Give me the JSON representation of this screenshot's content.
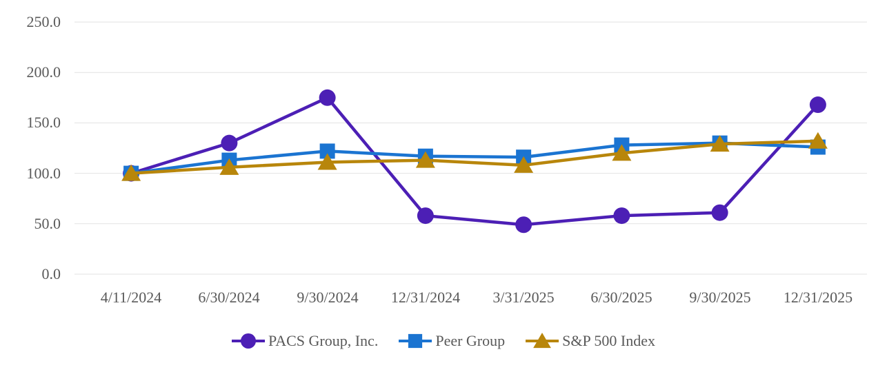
{
  "chart_data": {
    "type": "line",
    "title": "",
    "categories": [
      "4/11/2024",
      "6/30/2024",
      "9/30/2024",
      "12/31/2024",
      "3/31/2025",
      "6/30/2025",
      "9/30/2025",
      "12/31/2025"
    ],
    "series": [
      {
        "name": "PACS Group, Inc.",
        "marker": "circle",
        "color": "#4C1FB5",
        "values": [
          100,
          130,
          175,
          58,
          49,
          58,
          61,
          168
        ]
      },
      {
        "name": "Peer Group",
        "marker": "square",
        "color": "#1B74D1",
        "values": [
          100,
          113,
          122,
          117,
          116,
          128,
          130,
          126
        ]
      },
      {
        "name": "S&P 500 Index",
        "marker": "triangle",
        "color": "#B8860B",
        "values": [
          100,
          106,
          111,
          113,
          108,
          120,
          129,
          132
        ]
      }
    ],
    "yticks": [
      "250.0",
      "200.0",
      "150.0",
      "100.0",
      "50.0",
      "0.0"
    ],
    "ylim": [
      0,
      250
    ],
    "grid": true,
    "legend_position": "bottom",
    "axis_text_color": "#595959",
    "grid_color": "#E2E2E2",
    "background": "#FFFFFF"
  }
}
